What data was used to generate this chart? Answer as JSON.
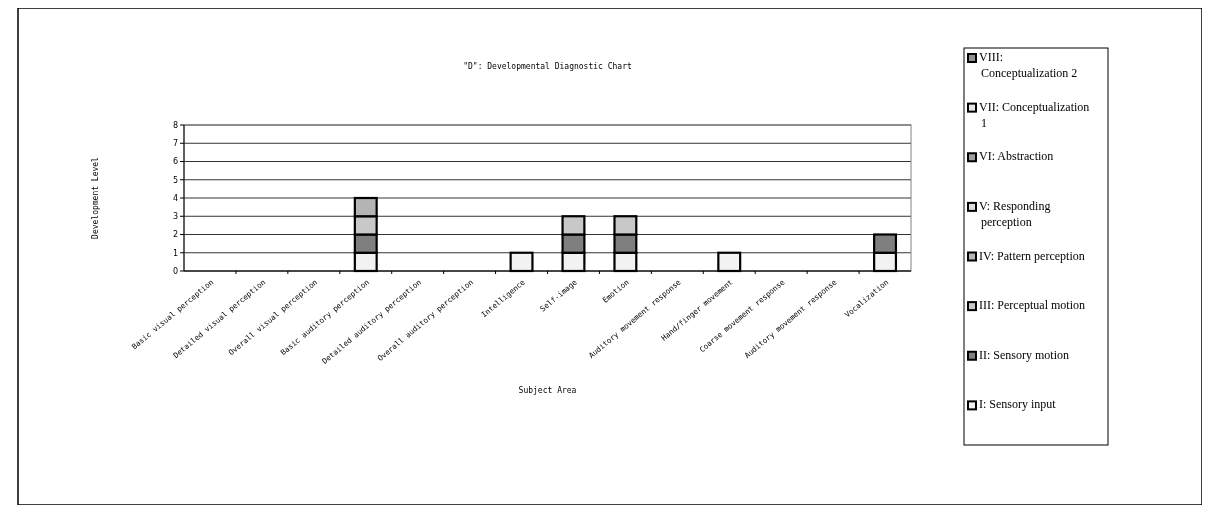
{
  "chart_data": {
    "type": "bar",
    "stacked": true,
    "title": "\"D\": Developmental Diagnostic Chart",
    "xlabel": "Subject Area",
    "ylabel": "Development Level",
    "categories": [
      "Basic visual perception",
      "Detailed visual perception",
      "Overall visual perception",
      "Basic auditory perception",
      "Detailed auditory perception",
      "Overall auditory perception",
      "Intelligence",
      "Self-image",
      "Emotion",
      "Auditory movement response",
      "Hand/finger movement",
      "Coarse movement response",
      "Auditory movement response",
      "Vocalization"
    ],
    "series": [
      {
        "name": "I: Sensory input",
        "color": "#f2f2f2",
        "values": [
          0,
          0,
          0,
          1,
          0,
          0,
          1,
          1,
          1,
          0,
          1,
          0,
          0,
          1
        ]
      },
      {
        "name": "II: Sensory motion",
        "color": "#7f7f7f",
        "values": [
          0,
          0,
          0,
          1,
          0,
          0,
          0,
          1,
          1,
          0,
          0,
          0,
          0,
          1
        ]
      },
      {
        "name": "III: Perceptual motion",
        "color": "#c8c8c8",
        "values": [
          0,
          0,
          0,
          1,
          0,
          0,
          0,
          1,
          1,
          0,
          0,
          0,
          0,
          0
        ]
      },
      {
        "name": "IV: Pattern perception",
        "color": "#b4b4b4",
        "values": [
          0,
          0,
          0,
          1,
          0,
          0,
          0,
          0,
          0,
          0,
          0,
          0,
          0,
          0
        ]
      },
      {
        "name": "V: Responding perception",
        "color": "#dcdcdc",
        "values": [
          0,
          0,
          0,
          0,
          0,
          0,
          0,
          0,
          0,
          0,
          0,
          0,
          0,
          0
        ]
      },
      {
        "name": "VI: Abstraction",
        "color": "#a0a0a0",
        "values": [
          0,
          0,
          0,
          0,
          0,
          0,
          0,
          0,
          0,
          0,
          0,
          0,
          0,
          0
        ]
      },
      {
        "name": "VII: Conceptualization 1",
        "color": "#e6e6e6",
        "values": [
          0,
          0,
          0,
          0,
          0,
          0,
          0,
          0,
          0,
          0,
          0,
          0,
          0,
          0
        ]
      },
      {
        "name": "VIII: Conceptualization 2",
        "color": "#909090",
        "values": [
          0,
          0,
          0,
          0,
          0,
          0,
          0,
          0,
          0,
          0,
          0,
          0,
          0,
          0
        ]
      }
    ],
    "ylim": [
      0,
      8
    ],
    "yticks": [
      0,
      1,
      2,
      3,
      4,
      5,
      6,
      7,
      8
    ],
    "grid": "y",
    "legend": "right"
  }
}
